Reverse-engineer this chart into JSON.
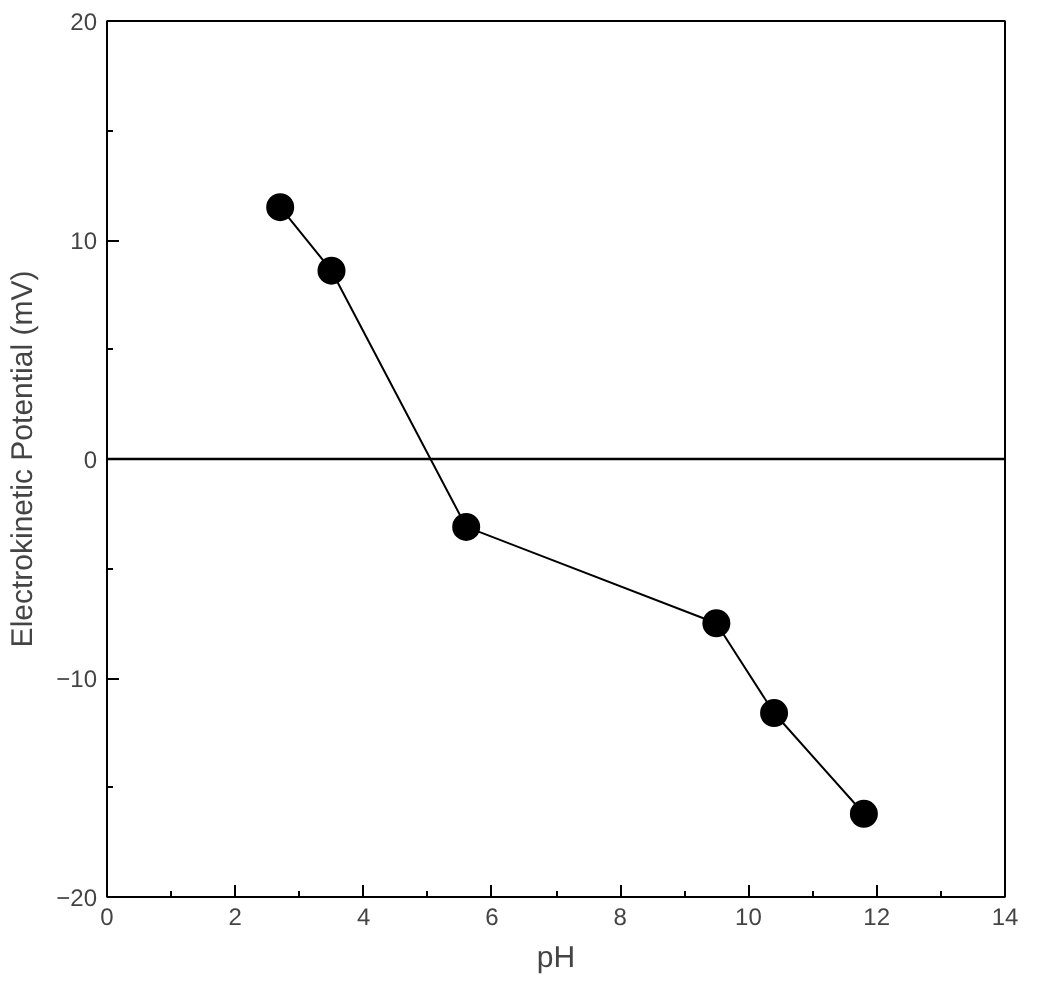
{
  "chart_data": {
    "type": "line",
    "xlabel": "pH",
    "ylabel": "Electrokinetic Potential (mV)",
    "x": [
      2.7,
      3.5,
      5.6,
      9.5,
      10.4,
      11.8
    ],
    "series": [
      {
        "color": "#000000",
        "values": [
          11.5,
          8.6,
          -3.1,
          -7.5,
          -11.6,
          -16.2
        ]
      }
    ],
    "xlim": [
      0,
      14
    ],
    "ylim": [
      -20,
      20
    ],
    "xticks": [
      0,
      {
        "value": 1,
        "label": null
      },
      2,
      {
        "value": 3,
        "label": null
      },
      4,
      {
        "value": 5,
        "label": null
      },
      6,
      {
        "value": 7,
        "label": null
      },
      8,
      {
        "value": 9,
        "label": null
      },
      10,
      {
        "value": 11,
        "label": null
      },
      12,
      {
        "value": 13,
        "label": null
      },
      14
    ],
    "yticks": [
      -20,
      {
        "value": -15,
        "label": null
      },
      -10,
      {
        "value": -5,
        "label": null
      },
      0,
      {
        "value": 5,
        "label": null
      },
      10,
      {
        "value": 15,
        "label": null
      },
      20
    ],
    "ref_lines": [
      {
        "axis": "y",
        "value": 0,
        "color": "#000000"
      }
    ],
    "marker": "circle",
    "line_style": "solid",
    "grid": false
  }
}
